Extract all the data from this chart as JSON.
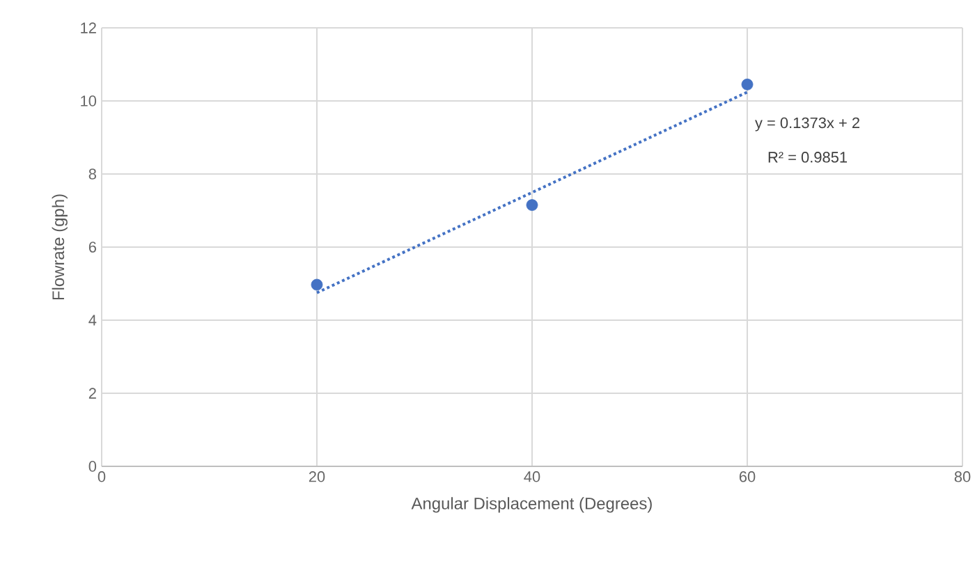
{
  "chart_data": {
    "type": "scatter",
    "xlabel": "Angular Displacement (Degrees)",
    "ylabel": "Flowrate (gph)",
    "series": [
      {
        "color": "#4472c4",
        "marker": "circle",
        "x": [
          20,
          40,
          60
        ],
        "values": [
          4.97,
          7.15,
          10.45
        ]
      },
      {
        "type": "line",
        "color": "#4472c4",
        "line_style": "dotted",
        "x": [
          20,
          60
        ],
        "values": [
          4.75,
          10.24
        ]
      }
    ],
    "annotations": [
      "y = 0.1373x + 2",
      "R² = 0.9851"
    ],
    "grid": true,
    "xlim": [
      0,
      80
    ],
    "xticks": [
      0,
      20,
      40,
      60,
      80
    ],
    "ylim": [
      0,
      12
    ],
    "yticks": [
      0,
      2,
      4,
      6,
      8,
      10,
      12
    ]
  }
}
